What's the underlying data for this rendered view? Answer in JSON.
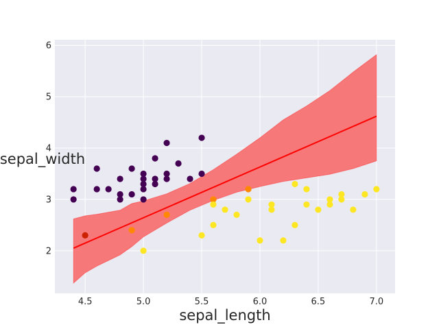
{
  "chart_data": {
    "type": "scatter",
    "xlabel": "sepal_length",
    "ylabel": "sepal_width",
    "xlim": [
      4.24,
      7.16
    ],
    "ylim": [
      1.17,
      6.11
    ],
    "xticks": [
      "4.5",
      "5.0",
      "5.5",
      "6.0",
      "6.5",
      "7.0"
    ],
    "yticks": [
      "2",
      "3",
      "4",
      "5",
      "6"
    ],
    "grid": true,
    "colors": {
      "background": "#eaeaf2",
      "grid": "#ffffff",
      "regression_line": "#ff0000",
      "confidence_band": "#f87272",
      "class_0": "#440154",
      "class_1": "#cc2200",
      "class_2": "#ff8800",
      "class_3": "#fde725"
    },
    "regression": {
      "x": [
        4.4,
        7.0
      ],
      "y": [
        2.05,
        4.62
      ]
    },
    "confidence_band": {
      "x": [
        4.4,
        4.5,
        4.6,
        4.8,
        4.9,
        5.0,
        5.2,
        5.4,
        5.6,
        5.8,
        6.0,
        6.2,
        6.4,
        6.6,
        6.8,
        7.0
      ],
      "upper": [
        2.62,
        2.68,
        2.71,
        2.79,
        2.92,
        2.97,
        3.11,
        3.31,
        3.58,
        3.88,
        4.2,
        4.55,
        4.82,
        5.12,
        5.48,
        5.82
      ],
      "lower": [
        1.37,
        1.57,
        1.7,
        1.92,
        2.08,
        2.27,
        2.54,
        2.79,
        2.98,
        3.14,
        3.25,
        3.35,
        3.42,
        3.49,
        3.6,
        3.75
      ]
    },
    "points": [
      {
        "x": 4.4,
        "y": 3.2,
        "c": 0
      },
      {
        "x": 4.4,
        "y": 3.0,
        "c": 0
      },
      {
        "x": 4.6,
        "y": 3.6,
        "c": 0
      },
      {
        "x": 4.6,
        "y": 3.2,
        "c": 0
      },
      {
        "x": 4.7,
        "y": 3.2,
        "c": 0
      },
      {
        "x": 4.8,
        "y": 3.4,
        "c": 0
      },
      {
        "x": 4.8,
        "y": 3.1,
        "c": 0
      },
      {
        "x": 4.8,
        "y": 3.0,
        "c": 0
      },
      {
        "x": 4.9,
        "y": 3.6,
        "c": 0
      },
      {
        "x": 4.9,
        "y": 3.1,
        "c": 0
      },
      {
        "x": 5.0,
        "y": 3.5,
        "c": 0
      },
      {
        "x": 5.0,
        "y": 3.4,
        "c": 0
      },
      {
        "x": 5.0,
        "y": 3.3,
        "c": 0
      },
      {
        "x": 5.0,
        "y": 3.2,
        "c": 0
      },
      {
        "x": 5.0,
        "y": 3.0,
        "c": 0
      },
      {
        "x": 5.1,
        "y": 3.8,
        "c": 0
      },
      {
        "x": 5.1,
        "y": 3.4,
        "c": 0
      },
      {
        "x": 5.1,
        "y": 3.3,
        "c": 0
      },
      {
        "x": 5.2,
        "y": 4.1,
        "c": 0
      },
      {
        "x": 5.2,
        "y": 3.5,
        "c": 0
      },
      {
        "x": 5.2,
        "y": 3.4,
        "c": 0
      },
      {
        "x": 5.3,
        "y": 3.7,
        "c": 0
      },
      {
        "x": 5.4,
        "y": 3.4,
        "c": 0
      },
      {
        "x": 5.5,
        "y": 4.2,
        "c": 0
      },
      {
        "x": 5.5,
        "y": 3.5,
        "c": 0
      },
      {
        "x": 4.5,
        "y": 2.3,
        "c": 1
      },
      {
        "x": 4.9,
        "y": 2.4,
        "c": 2
      },
      {
        "x": 5.2,
        "y": 2.7,
        "c": 2
      },
      {
        "x": 5.6,
        "y": 3.0,
        "c": 2
      },
      {
        "x": 5.9,
        "y": 3.2,
        "c": 2
      },
      {
        "x": 5.0,
        "y": 2.0,
        "c": 3
      },
      {
        "x": 5.5,
        "y": 2.3,
        "c": 3
      },
      {
        "x": 5.6,
        "y": 2.9,
        "c": 3
      },
      {
        "x": 5.6,
        "y": 2.5,
        "c": 3
      },
      {
        "x": 5.7,
        "y": 2.8,
        "c": 3
      },
      {
        "x": 5.8,
        "y": 2.7,
        "c": 3
      },
      {
        "x": 5.9,
        "y": 3.0,
        "c": 3
      },
      {
        "x": 6.0,
        "y": 2.2,
        "c": 3
      },
      {
        "x": 6.1,
        "y": 2.9,
        "c": 3
      },
      {
        "x": 6.1,
        "y": 2.8,
        "c": 3
      },
      {
        "x": 6.2,
        "y": 2.2,
        "c": 3
      },
      {
        "x": 6.3,
        "y": 3.3,
        "c": 3
      },
      {
        "x": 6.3,
        "y": 2.5,
        "c": 3
      },
      {
        "x": 6.4,
        "y": 3.2,
        "c": 3
      },
      {
        "x": 6.4,
        "y": 2.9,
        "c": 3
      },
      {
        "x": 6.5,
        "y": 2.8,
        "c": 3
      },
      {
        "x": 6.6,
        "y": 3.0,
        "c": 3
      },
      {
        "x": 6.6,
        "y": 2.9,
        "c": 3
      },
      {
        "x": 6.7,
        "y": 3.1,
        "c": 3
      },
      {
        "x": 6.7,
        "y": 3.0,
        "c": 3
      },
      {
        "x": 6.8,
        "y": 2.8,
        "c": 3
      },
      {
        "x": 6.9,
        "y": 3.1,
        "c": 3
      },
      {
        "x": 7.0,
        "y": 3.2,
        "c": 3
      }
    ]
  }
}
